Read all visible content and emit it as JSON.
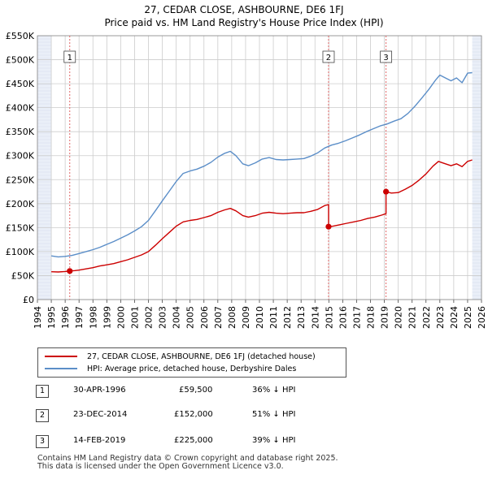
{
  "title_line1": "27, CEDAR CLOSE, ASHBOURNE, DE6 1FJ",
  "title_line2": "Price paid vs. HM Land Registry's House Price Index (HPI)",
  "colors": {
    "price": "#cc0000",
    "hpi": "#5b8ec8",
    "grid": "#cccccc",
    "shade": "#eaeff8",
    "vline": "#e06666"
  },
  "chart_data": {
    "type": "line",
    "title": "27, CEDAR CLOSE, ASHBOURNE, DE6 1FJ — Price paid vs. HM Land Registry's House Price Index (HPI)",
    "xlabel": "",
    "ylabel": "",
    "xlim": [
      1994,
      2026
    ],
    "ylim": [
      0,
      550000
    ],
    "x_ticks": [
      1994,
      1995,
      1996,
      1997,
      1998,
      1999,
      2000,
      2001,
      2002,
      2003,
      2004,
      2005,
      2006,
      2007,
      2008,
      2009,
      2010,
      2011,
      2012,
      2013,
      2014,
      2015,
      2016,
      2017,
      2018,
      2019,
      2020,
      2021,
      2022,
      2023,
      2024,
      2025,
      2026
    ],
    "y_ticks": [
      {
        "value": 0,
        "label": "£0"
      },
      {
        "value": 50000,
        "label": "£50K"
      },
      {
        "value": 100000,
        "label": "£100K"
      },
      {
        "value": 150000,
        "label": "£150K"
      },
      {
        "value": 200000,
        "label": "£200K"
      },
      {
        "value": 250000,
        "label": "£250K"
      },
      {
        "value": 300000,
        "label": "£300K"
      },
      {
        "value": 350000,
        "label": "£350K"
      },
      {
        "value": 400000,
        "label": "£400K"
      },
      {
        "value": 450000,
        "label": "£450K"
      },
      {
        "value": 500000,
        "label": "£500K"
      },
      {
        "value": 550000,
        "label": "£550K"
      }
    ],
    "grid": true,
    "data_start": 1995.0,
    "data_end": 2025.33,
    "series": [
      {
        "name": "27, CEDAR CLOSE, ASHBOURNE, DE6 1FJ (detached house)",
        "color": "#cc0000",
        "points": [
          [
            1995.0,
            58000
          ],
          [
            1995.5,
            57500
          ],
          [
            1996.0,
            58500
          ],
          [
            1996.33,
            59500
          ],
          [
            1996.7,
            60500
          ],
          [
            1997.0,
            61500
          ],
          [
            1997.5,
            64000
          ],
          [
            1998.0,
            66500
          ],
          [
            1998.5,
            70000
          ],
          [
            1999.0,
            72500
          ],
          [
            1999.5,
            75000
          ],
          [
            2000.0,
            79000
          ],
          [
            2000.5,
            83000
          ],
          [
            2001.0,
            88000
          ],
          [
            2001.5,
            93000
          ],
          [
            2002.0,
            100000
          ],
          [
            2002.5,
            113000
          ],
          [
            2003.0,
            127000
          ],
          [
            2003.5,
            140000
          ],
          [
            2004.0,
            153000
          ],
          [
            2004.5,
            162000
          ],
          [
            2005.0,
            165000
          ],
          [
            2005.5,
            167000
          ],
          [
            2006.0,
            171000
          ],
          [
            2006.5,
            175000
          ],
          [
            2007.0,
            182000
          ],
          [
            2007.5,
            187000
          ],
          [
            2007.9,
            190000
          ],
          [
            2008.3,
            185000
          ],
          [
            2008.8,
            175000
          ],
          [
            2009.2,
            172000
          ],
          [
            2009.7,
            175000
          ],
          [
            2010.2,
            180000
          ],
          [
            2010.7,
            182000
          ],
          [
            2011.2,
            180000
          ],
          [
            2011.7,
            179000
          ],
          [
            2012.2,
            180000
          ],
          [
            2012.7,
            181000
          ],
          [
            2013.2,
            181000
          ],
          [
            2013.7,
            184000
          ],
          [
            2014.2,
            188000
          ],
          [
            2014.7,
            196000
          ],
          [
            2014.98,
            198000
          ],
          [
            2014.98,
            152000
          ],
          [
            2015.3,
            153000
          ],
          [
            2015.8,
            156000
          ],
          [
            2016.3,
            159000
          ],
          [
            2016.8,
            162000
          ],
          [
            2017.3,
            165000
          ],
          [
            2017.8,
            169000
          ],
          [
            2018.3,
            172000
          ],
          [
            2018.8,
            176000
          ],
          [
            2019.12,
            179000
          ],
          [
            2019.12,
            225000
          ],
          [
            2019.5,
            222000
          ],
          [
            2020.0,
            223000
          ],
          [
            2020.5,
            230000
          ],
          [
            2021.0,
            238000
          ],
          [
            2021.5,
            249000
          ],
          [
            2022.0,
            262000
          ],
          [
            2022.5,
            278000
          ],
          [
            2022.9,
            288000
          ],
          [
            2023.3,
            284000
          ],
          [
            2023.8,
            279000
          ],
          [
            2024.2,
            283000
          ],
          [
            2024.6,
            277000
          ],
          [
            2025.0,
            288000
          ],
          [
            2025.33,
            291000
          ]
        ]
      },
      {
        "name": "HPI: Average price, detached house, Derbyshire Dales",
        "color": "#5b8ec8",
        "points": [
          [
            1995.0,
            91000
          ],
          [
            1995.5,
            89000
          ],
          [
            1996.0,
            90000
          ],
          [
            1996.5,
            92000
          ],
          [
            1997.0,
            96000
          ],
          [
            1997.5,
            100000
          ],
          [
            1998.0,
            104000
          ],
          [
            1998.5,
            109000
          ],
          [
            1999.0,
            115000
          ],
          [
            1999.5,
            121000
          ],
          [
            2000.0,
            128000
          ],
          [
            2000.5,
            135000
          ],
          [
            2001.0,
            143000
          ],
          [
            2001.5,
            152000
          ],
          [
            2002.0,
            165000
          ],
          [
            2002.5,
            185000
          ],
          [
            2003.0,
            206000
          ],
          [
            2003.5,
            226000
          ],
          [
            2004.0,
            246000
          ],
          [
            2004.5,
            263000
          ],
          [
            2005.0,
            268000
          ],
          [
            2005.5,
            272000
          ],
          [
            2006.0,
            278000
          ],
          [
            2006.5,
            286000
          ],
          [
            2007.0,
            297000
          ],
          [
            2007.5,
            305000
          ],
          [
            2007.9,
            309000
          ],
          [
            2008.3,
            300000
          ],
          [
            2008.8,
            283000
          ],
          [
            2009.2,
            279000
          ],
          [
            2009.7,
            285000
          ],
          [
            2010.2,
            293000
          ],
          [
            2010.7,
            296000
          ],
          [
            2011.2,
            292000
          ],
          [
            2011.7,
            291000
          ],
          [
            2012.2,
            292000
          ],
          [
            2012.7,
            293000
          ],
          [
            2013.2,
            294000
          ],
          [
            2013.7,
            299000
          ],
          [
            2014.2,
            306000
          ],
          [
            2014.7,
            316000
          ],
          [
            2015.2,
            322000
          ],
          [
            2015.7,
            326000
          ],
          [
            2016.2,
            331000
          ],
          [
            2016.7,
            337000
          ],
          [
            2017.2,
            343000
          ],
          [
            2017.7,
            350000
          ],
          [
            2018.2,
            356000
          ],
          [
            2018.7,
            362000
          ],
          [
            2019.2,
            366000
          ],
          [
            2019.7,
            372000
          ],
          [
            2020.2,
            377000
          ],
          [
            2020.7,
            388000
          ],
          [
            2021.2,
            403000
          ],
          [
            2021.7,
            420000
          ],
          [
            2022.2,
            438000
          ],
          [
            2022.7,
            458000
          ],
          [
            2023.0,
            468000
          ],
          [
            2023.4,
            462000
          ],
          [
            2023.8,
            456000
          ],
          [
            2024.2,
            462000
          ],
          [
            2024.6,
            452000
          ],
          [
            2025.0,
            472000
          ],
          [
            2025.33,
            473000
          ]
        ]
      }
    ],
    "annotations": [
      {
        "label": "1",
        "x": 1996.33,
        "y": 59500
      },
      {
        "label": "2",
        "x": 2014.98,
        "y": 152000
      },
      {
        "label": "3",
        "x": 2019.12,
        "y": 225000
      }
    ]
  },
  "legend": {
    "price_label": "27, CEDAR CLOSE, ASHBOURNE, DE6 1FJ (detached house)",
    "hpi_label": "HPI: Average price, detached house, Derbyshire Dales"
  },
  "transactions": [
    {
      "num": "1",
      "date": "30-APR-1996",
      "price": "£59,500",
      "hpi": "36% ↓ HPI"
    },
    {
      "num": "2",
      "date": "23-DEC-2014",
      "price": "£152,000",
      "hpi": "51% ↓ HPI"
    },
    {
      "num": "3",
      "date": "14-FEB-2019",
      "price": "£225,000",
      "hpi": "39% ↓ HPI"
    }
  ],
  "footer_line1": "Contains HM Land Registry data © Crown copyright and database right 2025.",
  "footer_line2": "This data is licensed under the Open Government Licence v3.0."
}
